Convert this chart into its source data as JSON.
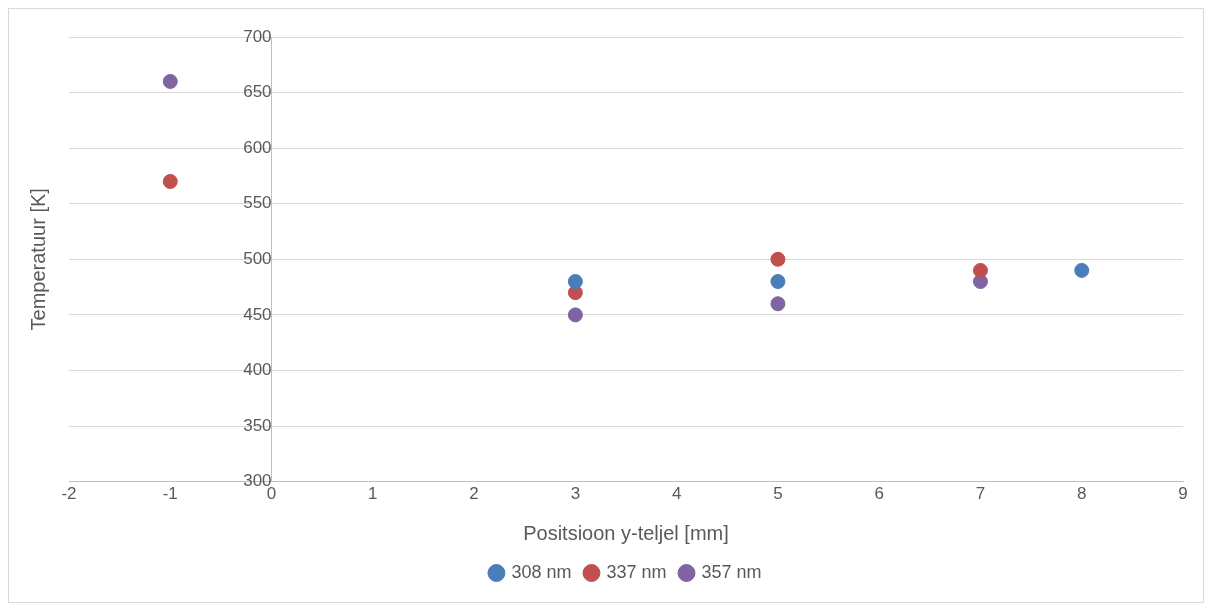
{
  "chart_data": {
    "type": "scatter",
    "xlabel": "Positsioon y-teljel [mm]",
    "ylabel": "Temperatuur [K]",
    "xlim": [
      -2,
      9
    ],
    "xticks": [
      -2,
      -1,
      0,
      1,
      2,
      3,
      4,
      5,
      6,
      7,
      8,
      9
    ],
    "ylim": [
      300,
      700
    ],
    "yticks": [
      300,
      350,
      400,
      450,
      500,
      550,
      600,
      650,
      700
    ],
    "grid": "y",
    "legend": "bottom",
    "marker": "circle",
    "series": [
      {
        "name": "308 nm",
        "color": "#4a7ebb",
        "x": [
          3,
          5,
          8
        ],
        "values": [
          480,
          480,
          490
        ]
      },
      {
        "name": "337 nm",
        "color": "#c0504d",
        "x": [
          -1,
          3,
          5,
          7
        ],
        "values": [
          570,
          470,
          500,
          490
        ]
      },
      {
        "name": "357 nm",
        "color": "#8064a2",
        "x": [
          -1,
          3,
          5,
          7
        ],
        "values": [
          660,
          450,
          460,
          480
        ]
      }
    ]
  }
}
